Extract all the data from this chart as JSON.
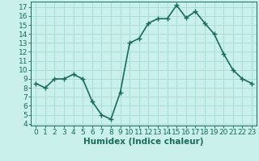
{
  "x": [
    0,
    1,
    2,
    3,
    4,
    5,
    6,
    7,
    8,
    9,
    10,
    11,
    12,
    13,
    14,
    15,
    16,
    17,
    18,
    19,
    20,
    21,
    22,
    23
  ],
  "y": [
    8.5,
    8.0,
    9.0,
    9.0,
    9.5,
    9.0,
    6.5,
    5.0,
    4.5,
    7.5,
    13.0,
    13.5,
    15.2,
    15.7,
    15.7,
    17.2,
    15.8,
    16.5,
    15.2,
    14.0,
    11.8,
    10.0,
    9.0,
    8.5
  ],
  "xlabel": "Humidex (Indice chaleur)",
  "yticks": [
    4,
    5,
    6,
    7,
    8,
    9,
    10,
    11,
    12,
    13,
    14,
    15,
    16,
    17
  ],
  "xticks": [
    0,
    1,
    2,
    3,
    4,
    5,
    6,
    7,
    8,
    9,
    10,
    11,
    12,
    13,
    14,
    15,
    16,
    17,
    18,
    19,
    20,
    21,
    22,
    23
  ],
  "ylim": [
    3.8,
    17.6
  ],
  "xlim": [
    -0.5,
    23.5
  ],
  "line_color": "#1a6b5a",
  "marker": "+",
  "bg_color": "#caf0eb",
  "grid_color": "#aaddd6",
  "xlabel_fontsize": 7.5,
  "tick_fontsize": 6.5,
  "linewidth": 1.2,
  "markersize": 4,
  "markeredgewidth": 1.0
}
